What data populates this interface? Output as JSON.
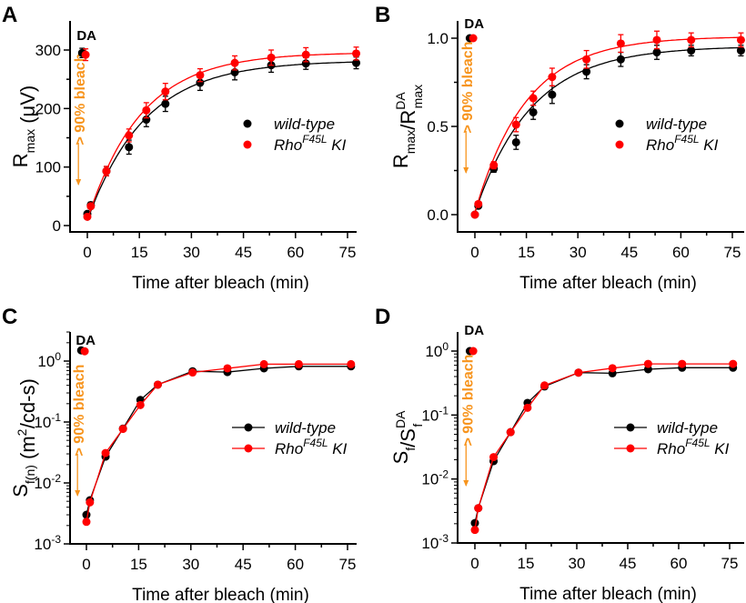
{
  "colors": {
    "wild_type": "#000000",
    "knockin": "#ff0000",
    "annotation": "#f7941d"
  },
  "legend": {
    "wt": "wild-type",
    "ki_main": "Rho",
    "ki_sup": "F45L",
    "ki_tail": " KI"
  },
  "annotation": {
    "da": "DA",
    "bleach": "> 90% bleach"
  },
  "chart_data": [
    {
      "panel": "A",
      "type": "scatter",
      "scale": "linear",
      "xlabel": "Time after bleach (min)",
      "ylabel": [
        {
          "t": "R"
        },
        {
          "t": "max",
          "sub": true
        },
        {
          "t": " (μV)"
        }
      ],
      "xticks": [
        "0",
        "15",
        "30",
        "45",
        "60",
        "75"
      ],
      "xtick_values": [
        0,
        15,
        30,
        45,
        60,
        75
      ],
      "yticks": [
        "0",
        "100",
        "200",
        "300"
      ],
      "ytick_values": [
        0,
        100,
        200,
        300
      ],
      "xlim": [
        -5,
        77.6
      ],
      "ylim": [
        -11,
        350
      ],
      "legend_style": "markers",
      "fit": "exponential",
      "series": [
        {
          "name": "wild-type",
          "x": [
            -1.5,
            0,
            1,
            5.5,
            12,
            17,
            22.5,
            32.5,
            42.5,
            53,
            63,
            77.5
          ],
          "y": [
            295,
            20,
            35,
            93,
            134,
            181,
            208,
            244,
            262,
            274,
            277,
            278
          ],
          "err": [
            8,
            4,
            5,
            8,
            12,
            12,
            13,
            13,
            13,
            12,
            10,
            10
          ],
          "fit_params": {
            "amplitude": 282,
            "tau": 16.5,
            "t0": -0.5
          }
        },
        {
          "name": "RhoF45L KI",
          "x": [
            -0.5,
            0,
            1,
            5.5,
            12,
            17,
            22.5,
            32.5,
            42.5,
            53,
            63,
            77.5
          ],
          "y": [
            292,
            15,
            33,
            93,
            154,
            197,
            229,
            257,
            278,
            287,
            292,
            294
          ],
          "err": [
            10,
            3,
            4,
            8,
            11,
            13,
            14,
            11,
            12,
            13,
            12,
            11
          ],
          "fit_params": {
            "amplitude": 296,
            "tau": 15.5,
            "t0": -0.5
          }
        }
      ]
    },
    {
      "panel": "B",
      "type": "scatter",
      "scale": "linear",
      "xlabel": "Time after bleach (min)",
      "ylabel": [
        {
          "t": "R"
        },
        {
          "t": "max",
          "sub": true
        },
        {
          "t": "/R"
        },
        {
          "t": "max",
          "sub": true,
          "sup": "DA"
        }
      ],
      "xticks": [
        "0",
        "15",
        "30",
        "45",
        "60",
        "75"
      ],
      "xtick_values": [
        0,
        15,
        30,
        45,
        60,
        75
      ],
      "yticks": [
        "0.0",
        "0.5",
        "1.0"
      ],
      "ytick_values": [
        0,
        0.5,
        1.0
      ],
      "xlim": [
        -5,
        78
      ],
      "ylim": [
        -0.1,
        1.1
      ],
      "legend_style": "markers",
      "fit": "exponential",
      "series": [
        {
          "name": "wild-type",
          "x": [
            -1.5,
            0,
            1,
            5.5,
            12,
            17,
            22.5,
            32.5,
            42.5,
            53,
            63,
            77.5
          ],
          "y": [
            1.0,
            0.0,
            0.05,
            0.26,
            0.41,
            0.58,
            0.68,
            0.81,
            0.88,
            0.92,
            0.93,
            0.93
          ],
          "err": [
            0,
            0,
            0.01,
            0.02,
            0.04,
            0.04,
            0.05,
            0.04,
            0.04,
            0.04,
            0.03,
            0.03
          ],
          "fit_params": {
            "amplitude": 0.955,
            "tau": 16.5,
            "t0": -0.2
          }
        },
        {
          "name": "RhoF45L KI",
          "x": [
            -0.5,
            0,
            1,
            5.5,
            12,
            17,
            22.5,
            32.5,
            42.5,
            53,
            63,
            77.5
          ],
          "y": [
            1.0,
            0.0,
            0.06,
            0.28,
            0.51,
            0.66,
            0.78,
            0.88,
            0.97,
            0.99,
            0.99,
            0.99
          ],
          "err": [
            0,
            0,
            0.01,
            0.02,
            0.04,
            0.04,
            0.05,
            0.05,
            0.05,
            0.05,
            0.04,
            0.04
          ],
          "fit_params": {
            "amplitude": 1.01,
            "tau": 15,
            "t0": -0.2
          }
        }
      ]
    },
    {
      "panel": "C",
      "type": "line",
      "scale": "log",
      "xlabel": "Time after bleach (min)",
      "ylabel": [
        {
          "t": "S"
        },
        {
          "t": "f(n)",
          "sub": true
        },
        {
          "t": " (m"
        },
        {
          "t": "2",
          "sup2": true
        },
        {
          "t": "/cd-s)"
        }
      ],
      "xticks": [
        "0",
        "15",
        "30",
        "45",
        "60",
        "75"
      ],
      "xtick_values": [
        0,
        15,
        30,
        45,
        60,
        75
      ],
      "yticks": [
        {
          "b": "10",
          "e": "-3"
        },
        {
          "b": "10",
          "e": "-2"
        },
        {
          "b": "10",
          "e": "-1"
        },
        {
          "b": "10",
          "e": "0"
        }
      ],
      "ytick_values": [
        0.001,
        0.01,
        0.1,
        1
      ],
      "xlim": [
        -5,
        77.6
      ],
      "ylim": [
        0.001,
        3
      ],
      "legend_style": "lines",
      "series": [
        {
          "name": "wild-type",
          "x": [
            -1.5,
            0,
            1,
            5.5,
            10.5,
            15.5,
            20.5,
            30.5,
            40.5,
            51,
            61,
            76
          ],
          "y": [
            1.5,
            0.003,
            0.0052,
            0.027,
            0.078,
            0.23,
            0.41,
            0.68,
            0.66,
            0.76,
            0.82,
            0.82
          ]
        },
        {
          "name": "RhoF45L KI",
          "x": [
            -0.5,
            0,
            1,
            5.5,
            10.5,
            15.5,
            20.5,
            30.5,
            40.5,
            51,
            61,
            76
          ],
          "y": [
            1.45,
            0.0023,
            0.0048,
            0.031,
            0.077,
            0.19,
            0.41,
            0.65,
            0.76,
            0.89,
            0.89,
            0.89
          ]
        }
      ]
    },
    {
      "panel": "D",
      "type": "line",
      "scale": "log",
      "xlabel": "Time after bleach (min)",
      "ylabel": [
        {
          "t": "S"
        },
        {
          "t": "f",
          "sub": true
        },
        {
          "t": "/S"
        },
        {
          "t": "f",
          "sub": true,
          "sup": "DA"
        }
      ],
      "xticks": [
        "0",
        "15",
        "30",
        "45",
        "60",
        "75"
      ],
      "xtick_values": [
        0,
        15,
        30,
        45,
        60,
        75
      ],
      "yticks": [
        {
          "b": "10",
          "e": "-3"
        },
        {
          "b": "10",
          "e": "-2"
        },
        {
          "b": "10",
          "e": "-1"
        },
        {
          "b": "10",
          "e": "0"
        }
      ],
      "ytick_values": [
        0.001,
        0.01,
        0.1,
        1
      ],
      "xlim": [
        -5,
        78
      ],
      "ylim": [
        0.001,
        2
      ],
      "legend_style": "lines",
      "series": [
        {
          "name": "wild-type",
          "x": [
            -1.5,
            0,
            1,
            5.5,
            10.5,
            15.5,
            20.5,
            30.5,
            40.5,
            51,
            61,
            76
          ],
          "y": [
            1.0,
            0.00205,
            0.0035,
            0.019,
            0.054,
            0.155,
            0.28,
            0.46,
            0.45,
            0.52,
            0.55,
            0.55
          ]
        },
        {
          "name": "RhoF45L KI",
          "x": [
            -0.5,
            0,
            1,
            5.5,
            10.5,
            15.5,
            20.5,
            30.5,
            40.5,
            51,
            61,
            76
          ],
          "y": [
            1.0,
            0.0016,
            0.0035,
            0.022,
            0.054,
            0.13,
            0.29,
            0.46,
            0.54,
            0.63,
            0.63,
            0.63
          ]
        }
      ]
    }
  ]
}
